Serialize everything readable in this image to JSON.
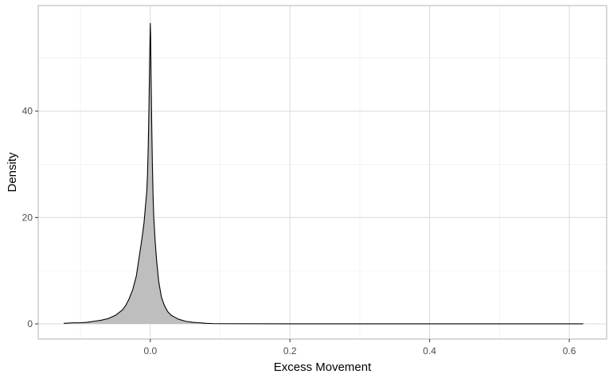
{
  "chart_data": {
    "type": "area",
    "title": "",
    "xlabel": "Excess Movement",
    "ylabel": "Density",
    "xlim": [
      -0.1605,
      0.6535
    ],
    "ylim": [
      -2.85,
      59.85
    ],
    "x_ticks": [
      0.0,
      0.2,
      0.4,
      0.6
    ],
    "x_tick_labels": [
      "0.0",
      "0.2",
      "0.4",
      "0.6"
    ],
    "y_ticks": [
      0,
      20,
      40
    ],
    "y_tick_labels": [
      "0",
      "20",
      "40"
    ],
    "grid": true,
    "legend": "none",
    "fill_color": "#bebebe",
    "line_color": "#000000",
    "panel_border_color": "#b3b3b3",
    "grid_major_color": "#dedede",
    "grid_minor_color": "#ececec",
    "series": [
      {
        "x": [
          -0.124,
          -0.11,
          -0.1,
          -0.09,
          -0.08,
          -0.07,
          -0.06,
          -0.05,
          -0.04,
          -0.035,
          -0.03,
          -0.025,
          -0.02,
          -0.016,
          -0.012,
          -0.009,
          -0.007,
          -0.005,
          -0.004,
          -0.003,
          -0.002,
          -0.001,
          0.0,
          0.0005,
          0.001,
          0.002,
          0.003,
          0.004,
          0.005,
          0.007,
          0.009,
          0.012,
          0.016,
          0.02,
          0.025,
          0.03,
          0.04,
          0.05,
          0.06,
          0.07,
          0.08,
          0.09,
          0.1,
          0.2,
          0.3,
          0.4,
          0.5,
          0.6,
          0.62
        ],
        "y": [
          0.1,
          0.2,
          0.2,
          0.3,
          0.5,
          0.7,
          1.0,
          1.6,
          2.6,
          3.5,
          4.8,
          6.5,
          9.0,
          12.5,
          16.0,
          19.0,
          22.0,
          25.0,
          28.0,
          33.0,
          40.0,
          49.0,
          56.5,
          54.0,
          48.0,
          38.0,
          30.0,
          24.0,
          20.0,
          15.5,
          12.0,
          8.0,
          5.0,
          3.5,
          2.3,
          1.6,
          0.9,
          0.5,
          0.3,
          0.2,
          0.1,
          0.05,
          0.03,
          0.01,
          0.01,
          0.01,
          0.01,
          0.01,
          0.01
        ]
      }
    ]
  }
}
